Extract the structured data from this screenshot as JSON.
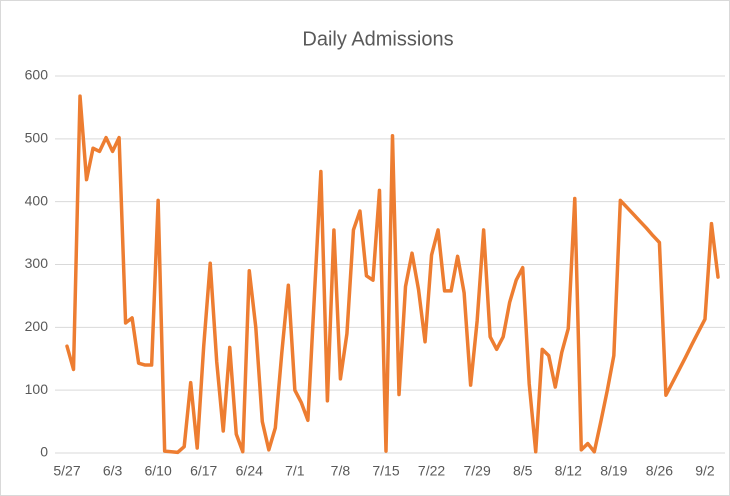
{
  "chart_data": {
    "type": "line",
    "title": "Daily Admissions",
    "categories": [
      "5/27",
      null,
      null,
      null,
      null,
      null,
      null,
      "6/3",
      null,
      null,
      null,
      null,
      null,
      null,
      "6/10",
      null,
      null,
      null,
      null,
      null,
      null,
      "6/17",
      null,
      null,
      null,
      null,
      null,
      null,
      "6/24",
      null,
      null,
      null,
      null,
      null,
      null,
      "7/1",
      null,
      null,
      null,
      null,
      null,
      null,
      "7/8",
      null,
      null,
      null,
      null,
      null,
      null,
      "7/15",
      null,
      null,
      null,
      null,
      null,
      null,
      "7/22",
      null,
      null,
      null,
      null,
      null,
      null,
      "7/29",
      null,
      null,
      null,
      null,
      null,
      null,
      "8/5",
      null,
      null,
      null,
      null,
      null,
      null,
      "8/12",
      null,
      null,
      null,
      null,
      null,
      null,
      "8/19",
      null,
      null,
      null,
      null,
      null,
      null,
      "8/26",
      null,
      null,
      null,
      null,
      null,
      null,
      "9/2",
      null,
      null
    ],
    "values": [
      170,
      133,
      568,
      435,
      485,
      480,
      502,
      480,
      502,
      207,
      215,
      143,
      140,
      140,
      402,
      3,
      2,
      1,
      10,
      112,
      8,
      170,
      302,
      145,
      35,
      168,
      30,
      2,
      290,
      200,
      50,
      5,
      40,
      160,
      267,
      100,
      80,
      52,
      250,
      448,
      83,
      355,
      118,
      190,
      355,
      385,
      282,
      275,
      418,
      3,
      505,
      93,
      265,
      318,
      260,
      177,
      315,
      355,
      258,
      258,
      313,
      255,
      108,
      210,
      355,
      185,
      165,
      185,
      240,
      275,
      295,
      110,
      2,
      165,
      155,
      105,
      160,
      198,
      405,
      5,
      15,
      2,
      50,
      100,
      155,
      402,
      391,
      380,
      369,
      358,
      346,
      335,
      92,
      112,
      132,
      152,
      173,
      193,
      213,
      365,
      280
    ],
    "color": "#ed7d31",
    "ylim": [
      0,
      600
    ],
    "yticks": [
      0,
      100,
      200,
      300,
      400,
      500,
      600
    ],
    "grid": true
  }
}
